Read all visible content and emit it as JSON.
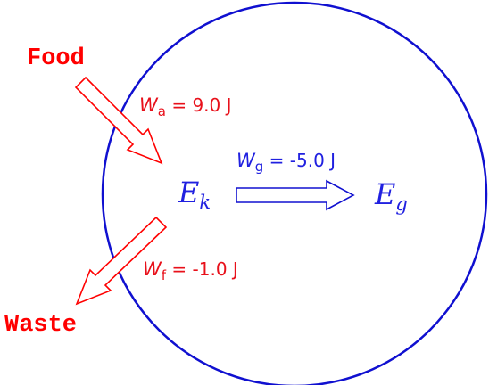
{
  "colors": {
    "red": "#ff0000",
    "blue": "#1010d0",
    "red_text": "#e8101a",
    "blue_text": "#2020e0"
  },
  "labels": {
    "food": "Food",
    "waste": "Waste"
  },
  "works": {
    "applied": {
      "symbol": "W",
      "subscript": "a",
      "value": "= 9.0 J"
    },
    "gravity": {
      "symbol": "W",
      "subscript": "g",
      "value": "= -5.0 J"
    },
    "friction": {
      "symbol": "W",
      "subscript": "f",
      "value": "= -1.0 J"
    }
  },
  "energies": {
    "kinetic": {
      "symbol": "E",
      "subscript": "k"
    },
    "gravitational": {
      "symbol": "E",
      "subscript": "g"
    }
  }
}
